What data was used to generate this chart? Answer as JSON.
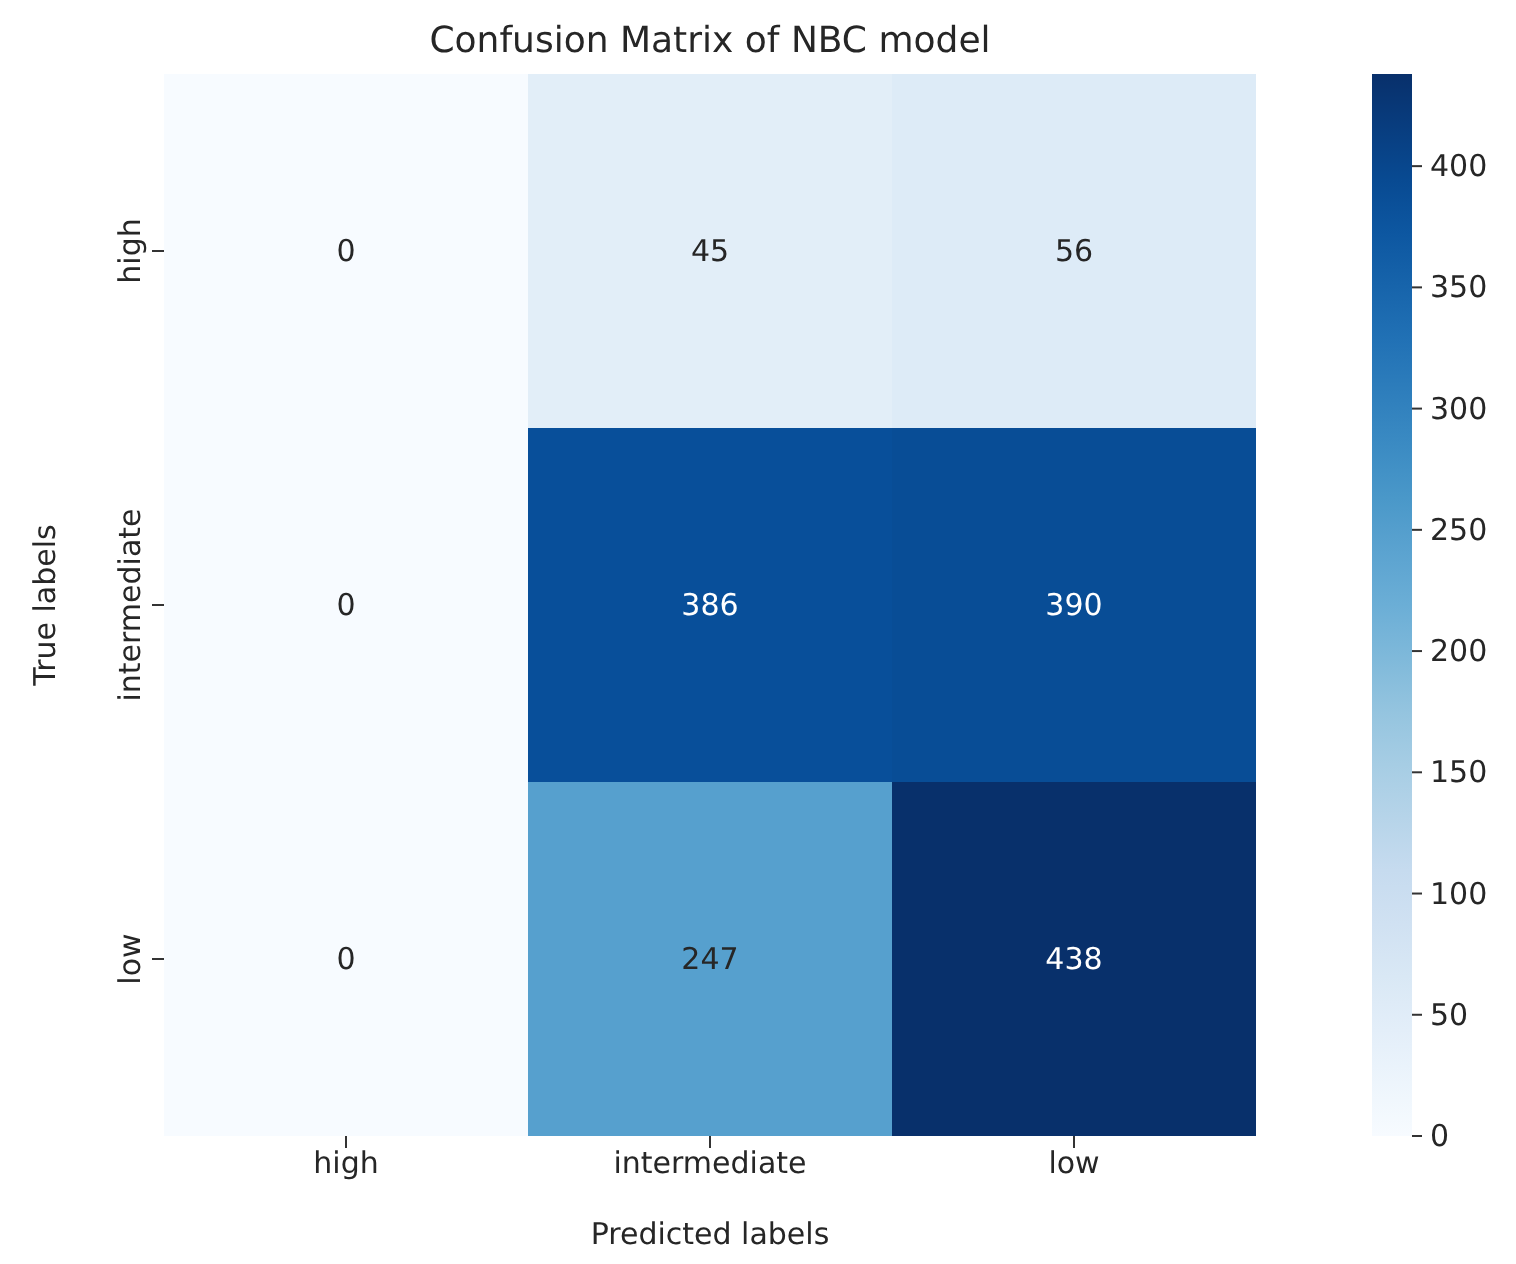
{
  "chart_data": {
    "type": "heatmap",
    "title": "Confusion Matrix of NBC model",
    "xlabel": "Predicted labels",
    "ylabel": "True labels",
    "categories": [
      "high",
      "intermediate",
      "low"
    ],
    "y_categories": [
      "high",
      "intermediate",
      "low"
    ],
    "cells": [
      [
        0,
        45,
        56
      ],
      [
        0,
        386,
        390
      ],
      [
        0,
        247,
        438
      ]
    ],
    "data_labels": true,
    "clim": [
      0,
      438
    ],
    "cticks": [
      0,
      50,
      100,
      150,
      200,
      250,
      300,
      350,
      400
    ]
  }
}
